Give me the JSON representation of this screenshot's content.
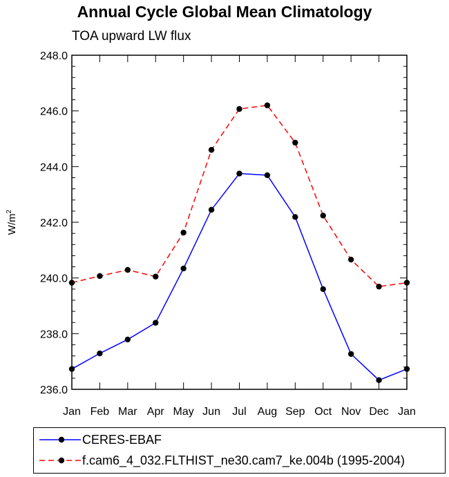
{
  "chart_data": {
    "type": "line",
    "title": "Annual Cycle Global Mean Climatology",
    "subtitle": "TOA upward LW flux",
    "ylabel": "W/m",
    "ylabel_superscript": "2",
    "xlabel": "",
    "categories": [
      "Jan",
      "Feb",
      "Mar",
      "Apr",
      "May",
      "Jun",
      "Jul",
      "Aug",
      "Sep",
      "Oct",
      "Nov",
      "Dec",
      "Jan"
    ],
    "ylim": [
      236.0,
      248.0
    ],
    "yticks": [
      "236.0",
      "238.0",
      "240.0",
      "242.0",
      "244.0",
      "246.0",
      "248.0"
    ],
    "series": [
      {
        "name": "CERES-EBAF",
        "color": "#0000ff",
        "style": "solid",
        "values": [
          236.73,
          237.29,
          237.79,
          238.39,
          240.34,
          242.45,
          243.75,
          243.69,
          242.19,
          239.6,
          237.27,
          236.33,
          236.73
        ]
      },
      {
        "name": "f.cam6_4_032.FLTHIST_ne30.cam7_ke.004b (1995-2004)",
        "color": "#ff0000",
        "style": "dashed",
        "values": [
          239.83,
          240.07,
          240.29,
          240.05,
          241.63,
          244.6,
          246.07,
          246.2,
          244.86,
          242.24,
          240.66,
          239.69,
          239.83
        ]
      }
    ],
    "grid": false,
    "legend_position": "bottom"
  }
}
